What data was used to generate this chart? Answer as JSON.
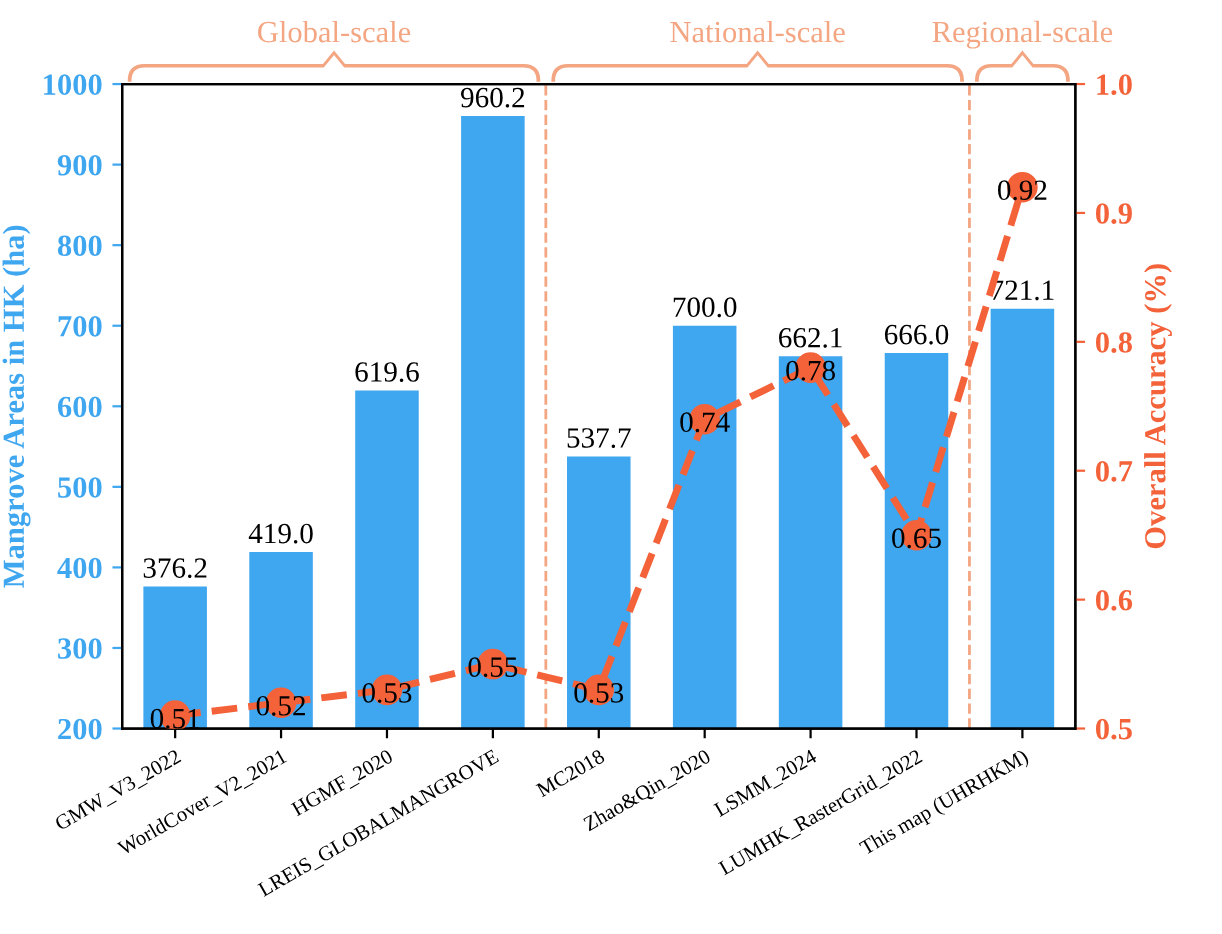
{
  "chart_data": {
    "type": "bar",
    "categories": [
      "GMW_V3_2022",
      "WorldCover_V2_2021",
      "HGMF_2020",
      "LREIS_GLOBALMANGROVE",
      "MC2018",
      "Zhao&Qin_2020",
      "LSMM_2024",
      "LUMHK_RasterGrid_2022",
      "This map (UHRHKM)"
    ],
    "series": [
      {
        "color": "#3fa6f0",
        "values": [
          376.2,
          419.0,
          619.6,
          960.2,
          537.7,
          700.0,
          662.1,
          666.0,
          721.1
        ],
        "value_labels": [
          "376.2",
          "419.0",
          "619.6",
          "960.2",
          "537.7",
          "700.0",
          "662.1",
          "666.0",
          "721.1"
        ]
      },
      {
        "type": "line",
        "axis": "y2",
        "color": "#f4623a",
        "marker": "circle",
        "line_style": "dashed",
        "values": [
          0.51,
          0.52,
          0.53,
          0.55,
          0.53,
          0.74,
          0.78,
          0.65,
          0.92
        ],
        "value_labels": [
          "0.51",
          "0.52",
          "0.53",
          "0.55",
          "0.53",
          "0.74",
          "0.78",
          "0.65",
          "0.92"
        ]
      }
    ],
    "ylabel": "Mangrove Areas in HK (ha)",
    "y2label": "Overall Accuracy (%)",
    "ylim": [
      200,
      1000
    ],
    "yticks": [
      200,
      300,
      400,
      500,
      600,
      700,
      800,
      900,
      1000
    ],
    "y2lim": [
      0.5,
      1.0
    ],
    "y2ticks": [
      0.5,
      0.6,
      0.7,
      0.8,
      0.9,
      {
        "value": 1.0,
        "label": "1.0"
      }
    ],
    "annotations": [
      "Global-scale",
      "National-scale",
      "Regional-scale"
    ],
    "grid": false,
    "legend": false
  }
}
